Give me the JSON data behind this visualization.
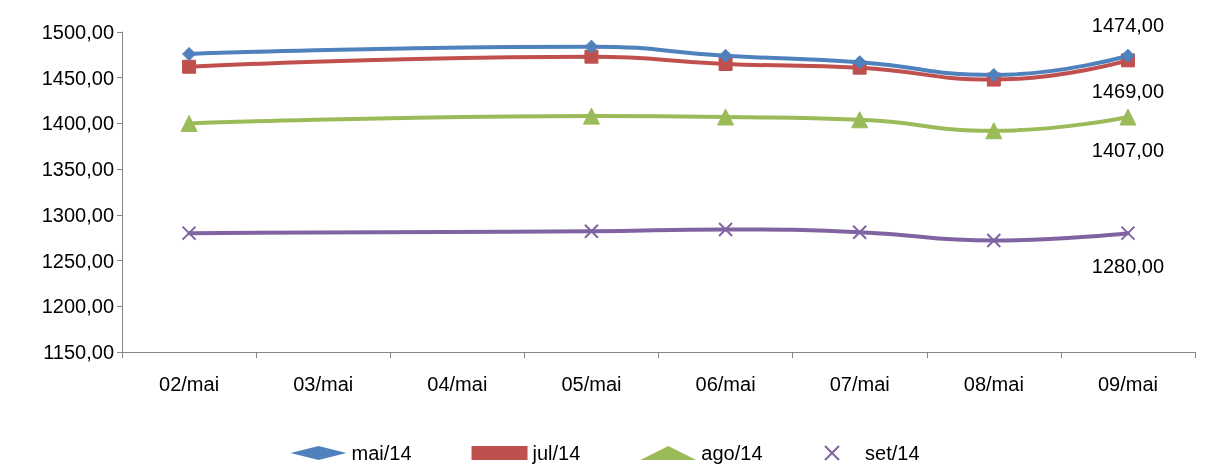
{
  "chart_data": {
    "type": "line",
    "categories": [
      "02/mai",
      "03/mai",
      "04/mai",
      "05/mai",
      "06/mai",
      "07/mai",
      "08/mai",
      "09/mai"
    ],
    "series": [
      {
        "name": "mai/14",
        "color": "#4f81bd",
        "marker": "diamond",
        "values": [
          1476,
          null,
          null,
          1484,
          1474,
          1467,
          1453,
          1474
        ],
        "value_labels": [
          null,
          null,
          null,
          null,
          null,
          null,
          null,
          "1474,00"
        ]
      },
      {
        "name": "jul/14",
        "color": "#c0504d",
        "marker": "square",
        "values": [
          1462,
          null,
          null,
          1473,
          1465,
          1461,
          1448,
          1469
        ],
        "value_labels": [
          null,
          null,
          null,
          null,
          null,
          null,
          null,
          "1469,00"
        ]
      },
      {
        "name": "ago/14",
        "color": "#9bbb59",
        "marker": "triangle",
        "values": [
          1400,
          null,
          null,
          1408,
          1407,
          1404,
          1392,
          1407
        ],
        "value_labels": [
          null,
          null,
          null,
          null,
          null,
          null,
          null,
          "1407,00"
        ]
      },
      {
        "name": "set/14",
        "color": "#8064a2",
        "marker": "cross",
        "values": [
          1280,
          null,
          null,
          1282,
          1284,
          1281,
          1272,
          1280
        ],
        "value_labels": [
          null,
          null,
          null,
          null,
          null,
          null,
          null,
          "1280,00"
        ]
      }
    ],
    "ylim": [
      1150,
      1500
    ],
    "yticks": [
      {
        "value": 1150,
        "label": "1150,00"
      },
      {
        "value": 1200,
        "label": "1200,00"
      },
      {
        "value": 1250,
        "label": "1250,00"
      },
      {
        "value": 1300,
        "label": "1300,00"
      },
      {
        "value": 1350,
        "label": "1350,00"
      },
      {
        "value": 1400,
        "label": "1400,00"
      },
      {
        "value": 1450,
        "label": "1450,00"
      },
      {
        "value": 1500,
        "label": "1500,00"
      }
    ],
    "grid": false,
    "legend": "bottom",
    "line_style": "solid"
  }
}
